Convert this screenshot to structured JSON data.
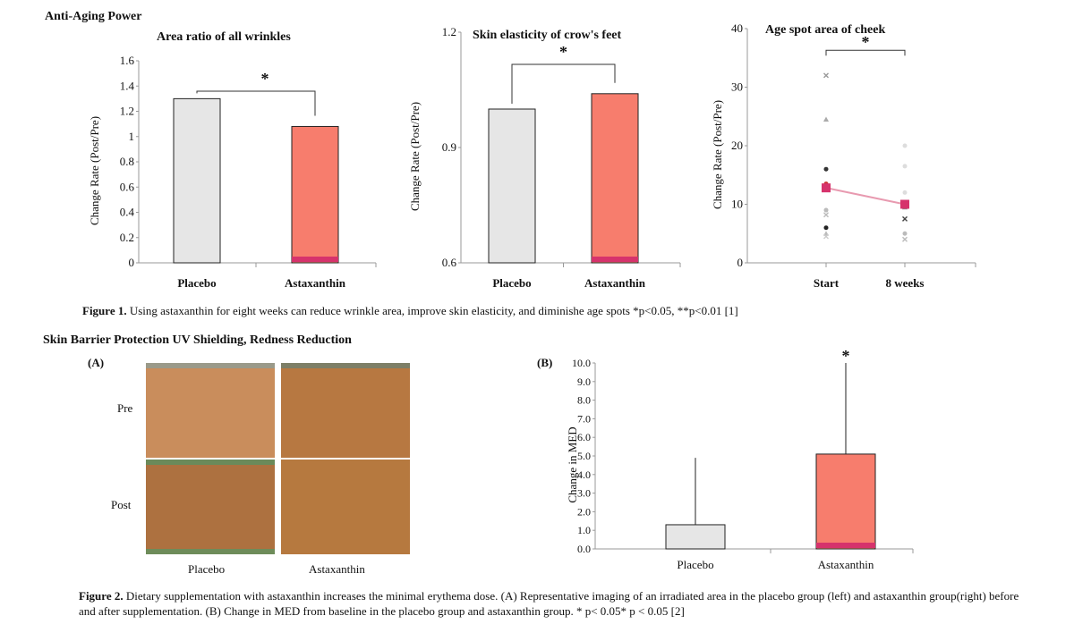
{
  "sections": {
    "anti_aging": "Anti-Aging Power",
    "skin_barrier": "Skin Barrier Protection   UV Shielding, Redness Reduction"
  },
  "fig1_caption": {
    "label": "Figure 1.",
    "text": " Using astaxanthin for eight weeks can reduce wrinkle area, improve skin elasticity, and diminishe age spots   *p<0.05, **p<0.01  [1]"
  },
  "fig2_caption": {
    "label": "Figure 2.",
    "text": "  Dietary supplementation with astaxanthin increases the minimal erythema dose. (A) Representative imaging of an irradiated area in the placebo group (left) and astaxanthin group(right) before and after supplementation. (B) Change in MED from baseline in the placebo group and astaxanthin group. * p< 0.05* p < 0.05 [2]"
  },
  "panel_labels": {
    "a": "(A)",
    "b": "(B)"
  },
  "photo_panel": {
    "rows": [
      "Pre",
      "Post"
    ],
    "columns": [
      "Placebo",
      "Astaxanthin"
    ],
    "colors": {
      "pre_placebo": "#c98d5c",
      "pre_astaxanthin": "#b77841",
      "post_placebo": "#ad7140",
      "post_astaxanthin": "#b6793f"
    }
  },
  "chart_data": [
    {
      "id": "wrinkles",
      "type": "bar",
      "title": "Area ratio of all wrinkles",
      "ylabel": "Change Rate (Post/Pre)",
      "categories": [
        "Placebo",
        "Astaxanthin"
      ],
      "values": [
        1.3,
        1.08
      ],
      "colors": [
        "#e6e6e6",
        "#f77d6d"
      ],
      "ylim": [
        0,
        1.6
      ],
      "yticks": [
        "0",
        "0.2",
        "0.4",
        "0.6",
        "0.8",
        "1",
        "1.2",
        "1.4",
        "1.6"
      ],
      "significance": "*"
    },
    {
      "id": "elasticity",
      "type": "bar",
      "title": "Skin elasticity of crow's feet",
      "ylabel": "Change Rate (Post/Pre)",
      "categories": [
        "Placebo",
        "Astaxanthin"
      ],
      "values": [
        1.0,
        1.04
      ],
      "colors": [
        "#e6e6e6",
        "#f77d6d"
      ],
      "ylim": [
        0.6,
        1.2
      ],
      "yticks": [
        "0.6",
        "0.9",
        "1.2"
      ],
      "significance": "*"
    },
    {
      "id": "agespots",
      "type": "scatter",
      "title": "Age spot area of cheek",
      "ylabel": "Change Rate (Post/Pre)",
      "categories": [
        "Start",
        "8 weeks"
      ],
      "ylim": [
        0,
        40
      ],
      "yticks": [
        "0",
        "10",
        "20",
        "30",
        "40"
      ],
      "means": [
        12.8,
        10.0
      ],
      "points": [
        {
          "x": 0,
          "y": 32,
          "shape": "x",
          "color": "#999"
        },
        {
          "x": 0,
          "y": 24.5,
          "shape": "tri",
          "color": "#aaa"
        },
        {
          "x": 0,
          "y": 16,
          "shape": "dot",
          "color": "#333"
        },
        {
          "x": 0,
          "y": 13.5,
          "shape": "dot",
          "color": "#c33"
        },
        {
          "x": 0,
          "y": 9,
          "shape": "dot",
          "color": "#bbb"
        },
        {
          "x": 0,
          "y": 8.2,
          "shape": "x",
          "color": "#bbb"
        },
        {
          "x": 0,
          "y": 6,
          "shape": "dot",
          "color": "#222"
        },
        {
          "x": 0,
          "y": 5,
          "shape": "tri",
          "color": "#bbb"
        },
        {
          "x": 0,
          "y": 4.5,
          "shape": "x",
          "color": "#ccc"
        },
        {
          "x": 1,
          "y": 20,
          "shape": "dot",
          "color": "#ddd"
        },
        {
          "x": 1,
          "y": 16.5,
          "shape": "dot",
          "color": "#ddd"
        },
        {
          "x": 1,
          "y": 12,
          "shape": "dot",
          "color": "#ddd"
        },
        {
          "x": 1,
          "y": 9.5,
          "shape": "tri",
          "color": "#888"
        },
        {
          "x": 1,
          "y": 7.5,
          "shape": "x",
          "color": "#444"
        },
        {
          "x": 1,
          "y": 5,
          "shape": "dot",
          "color": "#bbb"
        },
        {
          "x": 1,
          "y": 4,
          "shape": "x",
          "color": "#bbb"
        }
      ],
      "colors": {
        "mean_line": "#e89ab0",
        "mean_marker": "#d6336c"
      },
      "significance": "*"
    },
    {
      "id": "med",
      "type": "bar",
      "ylabel": "Change in MED",
      "categories": [
        "Placebo",
        "Astaxanthin"
      ],
      "values": [
        1.3,
        5.1
      ],
      "errors": [
        3.6,
        4.9
      ],
      "colors": [
        "#e6e6e6",
        "#f77d6d"
      ],
      "ylim": [
        0,
        10
      ],
      "yticks": [
        "0.0",
        "1.0",
        "2.0",
        "3.0",
        "4.0",
        "5.0",
        "6.0",
        "7.0",
        "8.0",
        "9.0",
        "10.0"
      ],
      "significance": "*"
    }
  ]
}
